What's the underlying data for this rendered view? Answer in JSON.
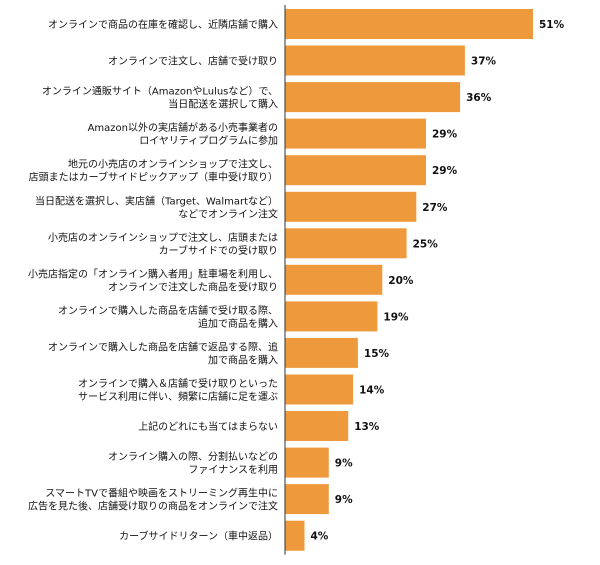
{
  "chart_data": {
    "type": "bar",
    "orientation": "horizontal",
    "categories": [
      [
        "オンラインで商品の在庫を確認し、近隣店舗で購入"
      ],
      [
        "オンラインで注文し、店舗で受け取り"
      ],
      [
        "オンライン通販サイト（AmazonやLulusなど）で、",
        "当日配送を選択して購入"
      ],
      [
        "Amazon以外の実店舗がある小売事業者の",
        "ロイヤリティプログラムに参加"
      ],
      [
        "地元の小売店のオンラインショップで注文し、",
        "店頭またはカーブサイドピックアップ（車中受け取り）"
      ],
      [
        "当日配送を選択し、実店舗（Target、Walmartなど）",
        "などでオンライン注文"
      ],
      [
        "小売店のオンラインショップで注文し、店頭または",
        "カーブサイドでの受け取り"
      ],
      [
        "小売店指定の「オンライン購入者用」駐車場を利用し、",
        "オンラインで注文した商品を受け取り"
      ],
      [
        "オンラインで購入した商品を店舗で受け取る際、",
        "追加で商品を購入"
      ],
      [
        "オンラインで購入した商品を店舗で返品する際、追",
        "加で商品を購入"
      ],
      [
        "オンラインで購入＆店舗で受け取りといった",
        "サービス利用に伴い、頻繁に店舗に足を運ぶ"
      ],
      [
        "上記のどれにも当てはまらない"
      ],
      [
        "オンライン購入の際、分割払いなどの",
        "ファイナンスを利用"
      ],
      [
        "スマートTVで番組や映画をストリーミング再生中に",
        "広告を見た後、店舗受け取りの商品をオンラインで注文"
      ],
      [
        "カーブサイドリターン（車中返品）"
      ]
    ],
    "values": [
      51,
      37,
      36,
      29,
      29,
      27,
      25,
      20,
      19,
      15,
      14,
      13,
      9,
      9,
      4
    ],
    "value_labels": [
      "51%",
      "37%",
      "36%",
      "29%",
      "29%",
      "27%",
      "25%",
      "20%",
      "19%",
      "15%",
      "14%",
      "13%",
      "9%",
      "9%",
      "4%"
    ],
    "bar_color": "#EE9A3C",
    "axis_color": "#333333",
    "title": "",
    "xlabel": "",
    "ylabel": "",
    "xlim": [
      0,
      51
    ],
    "grid": false,
    "legend": "none"
  }
}
